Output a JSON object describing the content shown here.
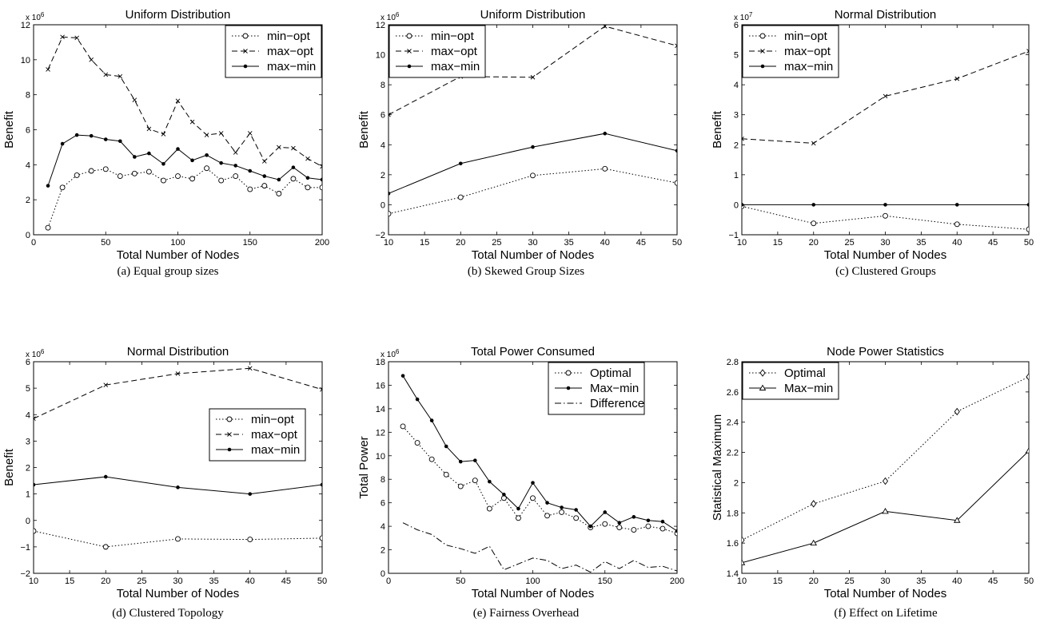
{
  "chart_data": [
    {
      "type": "line",
      "title": "Uniform Distribution",
      "xlabel": "Total Number of Nodes",
      "ylabel": "Benefit",
      "multiplier": "x 10",
      "multiplier_exp": "6",
      "xlim": [
        0,
        200
      ],
      "ylim": [
        0,
        12
      ],
      "xticks": [
        0,
        50,
        100,
        150,
        200
      ],
      "yticks": [
        0,
        2,
        4,
        6,
        8,
        10,
        12
      ],
      "legend_position": "top-right",
      "caption": "(a) Equal group sizes",
      "x": [
        10,
        20,
        30,
        40,
        50,
        60,
        70,
        80,
        90,
        100,
        110,
        120,
        130,
        140,
        150,
        160,
        170,
        180,
        190,
        200
      ],
      "series": [
        {
          "name": "min−opt",
          "style": "dotted",
          "marker": "o",
          "values": [
            0.4,
            2.7,
            3.4,
            3.65,
            3.75,
            3.35,
            3.5,
            3.6,
            3.1,
            3.35,
            3.2,
            3.8,
            3.1,
            3.35,
            2.6,
            2.8,
            2.35,
            3.2,
            2.7,
            2.7
          ]
        },
        {
          "name": "max−opt",
          "style": "dashed",
          "marker": "x",
          "values": [
            9.45,
            11.3,
            11.25,
            10.0,
            9.15,
            9.05,
            7.7,
            6.05,
            5.75,
            7.65,
            6.45,
            5.7,
            5.8,
            4.7,
            5.8,
            4.2,
            5.0,
            4.95,
            4.35,
            3.9
          ]
        },
        {
          "name": "max−min",
          "style": "solid",
          "marker": ".",
          "values": [
            2.8,
            5.2,
            5.7,
            5.65,
            5.45,
            5.35,
            4.45,
            4.65,
            4.05,
            4.9,
            4.25,
            4.55,
            4.1,
            3.95,
            3.65,
            3.35,
            3.15,
            3.85,
            3.25,
            3.15
          ]
        }
      ]
    },
    {
      "type": "line",
      "title": "Uniform Distribution",
      "xlabel": "Total Number of Nodes",
      "ylabel": "Benefit",
      "multiplier": "x 10",
      "multiplier_exp": "6",
      "xlim": [
        10,
        50
      ],
      "ylim": [
        -2,
        12
      ],
      "xticks": [
        10,
        15,
        20,
        25,
        30,
        35,
        40,
        45,
        50
      ],
      "yticks": [
        -2,
        0,
        2,
        4,
        6,
        8,
        10,
        12
      ],
      "legend_position": "top-left",
      "caption": "(b) Skewed Group Sizes",
      "x": [
        10,
        20,
        30,
        40,
        50
      ],
      "series": [
        {
          "name": "min−opt",
          "style": "dotted",
          "marker": "o",
          "values": [
            -0.6,
            0.5,
            1.95,
            2.4,
            1.45
          ]
        },
        {
          "name": "max−opt",
          "style": "dashed",
          "marker": "x",
          "values": [
            6.0,
            8.55,
            8.5,
            11.9,
            10.6
          ]
        },
        {
          "name": "max−min",
          "style": "solid",
          "marker": ".",
          "values": [
            0.75,
            2.75,
            3.85,
            4.75,
            3.6
          ]
        }
      ]
    },
    {
      "type": "line",
      "title": "Normal Distribution",
      "xlabel": "Total Number of Nodes",
      "ylabel": "Benefit",
      "multiplier": "x 10",
      "multiplier_exp": "7",
      "xlim": [
        10,
        50
      ],
      "ylim": [
        -1,
        6
      ],
      "xticks": [
        10,
        15,
        20,
        25,
        30,
        35,
        40,
        45,
        50
      ],
      "yticks": [
        -1,
        0,
        1,
        2,
        3,
        4,
        5,
        6
      ],
      "legend_position": "top-left",
      "caption": "(c) Clustered Groups",
      "x": [
        10,
        20,
        30,
        40,
        50
      ],
      "series": [
        {
          "name": "min−opt",
          "style": "dotted",
          "marker": "o",
          "values": [
            -0.05,
            -0.62,
            -0.37,
            -0.65,
            -0.82
          ]
        },
        {
          "name": "max−opt",
          "style": "dashed",
          "marker": "x",
          "values": [
            2.2,
            2.05,
            3.62,
            4.2,
            5.12
          ]
        },
        {
          "name": "max−min",
          "style": "solid",
          "marker": ".",
          "values": [
            0.0,
            0.0,
            0.0,
            0.0,
            0.0
          ]
        }
      ]
    },
    {
      "type": "line",
      "title": "Normal Distribution",
      "xlabel": "Total Number of Nodes",
      "ylabel": "Benefit",
      "multiplier": "x 10",
      "multiplier_exp": "6",
      "xlim": [
        10,
        50
      ],
      "ylim": [
        -2,
        6
      ],
      "xticks": [
        10,
        15,
        20,
        25,
        30,
        35,
        40,
        45,
        50
      ],
      "yticks": [
        -2,
        -1,
        0,
        1,
        2,
        3,
        4,
        5,
        6
      ],
      "legend_position": "center-right",
      "caption": "(d) Clustered Topology",
      "x": [
        10,
        20,
        30,
        40,
        50
      ],
      "series": [
        {
          "name": "min−opt",
          "style": "dotted",
          "marker": "o",
          "values": [
            -0.4,
            -1.0,
            -0.7,
            -0.72,
            -0.67
          ]
        },
        {
          "name": "max−opt",
          "style": "dashed",
          "marker": "x",
          "values": [
            3.85,
            5.12,
            5.55,
            5.75,
            4.95
          ]
        },
        {
          "name": "max−min",
          "style": "solid",
          "marker": ".",
          "values": [
            1.35,
            1.65,
            1.25,
            1.0,
            1.35
          ]
        }
      ]
    },
    {
      "type": "line",
      "title": "Total Power Consumed",
      "xlabel": "Total Number of Nodes",
      "ylabel": "Total Power",
      "multiplier": "x 10",
      "multiplier_exp": "6",
      "xlim": [
        0,
        200
      ],
      "ylim": [
        0,
        18
      ],
      "xticks": [
        0,
        50,
        100,
        150,
        200
      ],
      "yticks": [
        0,
        2,
        4,
        6,
        8,
        10,
        12,
        14,
        16,
        18
      ],
      "legend_position": "top-right",
      "caption": "(e) Fairness Overhead",
      "x": [
        10,
        20,
        30,
        40,
        50,
        60,
        70,
        80,
        90,
        100,
        110,
        120,
        130,
        140,
        150,
        160,
        170,
        180,
        190,
        200
      ],
      "series": [
        {
          "name": "Optimal",
          "style": "dotted",
          "marker": "o",
          "values": [
            12.5,
            11.1,
            9.7,
            8.4,
            7.4,
            7.9,
            5.5,
            6.4,
            4.7,
            6.4,
            4.9,
            5.2,
            4.7,
            3.9,
            4.2,
            3.9,
            3.7,
            4.0,
            3.8,
            3.4
          ]
        },
        {
          "name": "Max−min",
          "style": "solid",
          "marker": ".",
          "values": [
            16.8,
            14.8,
            13.0,
            10.8,
            9.5,
            9.6,
            7.8,
            6.7,
            5.5,
            7.7,
            6.0,
            5.6,
            5.4,
            4.0,
            5.2,
            4.3,
            4.8,
            4.5,
            4.4,
            3.6
          ]
        },
        {
          "name": "Difference",
          "style": "dashdot",
          "marker": "",
          "values": [
            4.3,
            3.7,
            3.3,
            2.4,
            2.1,
            1.7,
            2.3,
            0.3,
            0.8,
            1.3,
            1.1,
            0.4,
            0.7,
            0.1,
            1.0,
            0.4,
            1.1,
            0.5,
            0.6,
            0.2
          ]
        }
      ]
    },
    {
      "type": "line",
      "title": "Node Power Statistics",
      "xlabel": "Total Number of Nodes",
      "ylabel": "Statistical Maximum",
      "multiplier": "",
      "multiplier_exp": "",
      "xlim": [
        10,
        50
      ],
      "ylim": [
        1.4,
        2.8
      ],
      "xticks": [
        10,
        15,
        20,
        25,
        30,
        35,
        40,
        45,
        50
      ],
      "yticks": [
        1.4,
        1.6,
        1.8,
        2.0,
        2.2,
        2.4,
        2.6,
        2.8
      ],
      "ytick_labels": [
        "1.4",
        "1.6",
        "1.8",
        "2",
        "2.2",
        "2.4",
        "2.6",
        "2.8"
      ],
      "legend_position": "top-left",
      "caption": "(f) Effect on Lifetime",
      "x": [
        10,
        20,
        30,
        40,
        50
      ],
      "series": [
        {
          "name": "Optimal",
          "style": "dotted",
          "marker": "d",
          "values": [
            1.62,
            1.86,
            2.01,
            2.47,
            2.7
          ]
        },
        {
          "name": "Max−min",
          "style": "solid",
          "marker": "^",
          "values": [
            1.47,
            1.6,
            1.81,
            1.75,
            2.21
          ]
        }
      ]
    }
  ]
}
